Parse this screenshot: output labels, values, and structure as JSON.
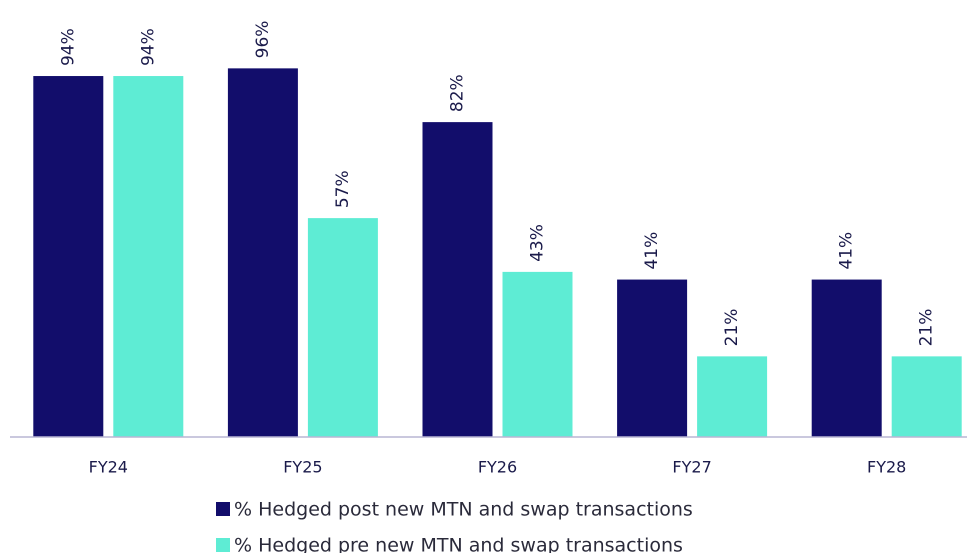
{
  "chart_data": {
    "type": "bar",
    "categories": [
      "FY24",
      "FY25",
      "FY26",
      "FY27",
      "FY28"
    ],
    "series": [
      {
        "name": "% Hedged post new MTN and swap transactions",
        "color": "#120d6b",
        "values": [
          94,
          96,
          82,
          41,
          41
        ],
        "value_labels": [
          "94%",
          "96%",
          "82%",
          "41%",
          "41%"
        ]
      },
      {
        "name": "% Hedged pre new MTN and swap transactions",
        "color": "#5eecd4",
        "values": [
          94,
          57,
          43,
          21,
          21
        ],
        "value_labels": [
          "94%",
          "57%",
          "43%",
          "21%",
          "21%"
        ]
      }
    ],
    "legend": "bottom"
  }
}
